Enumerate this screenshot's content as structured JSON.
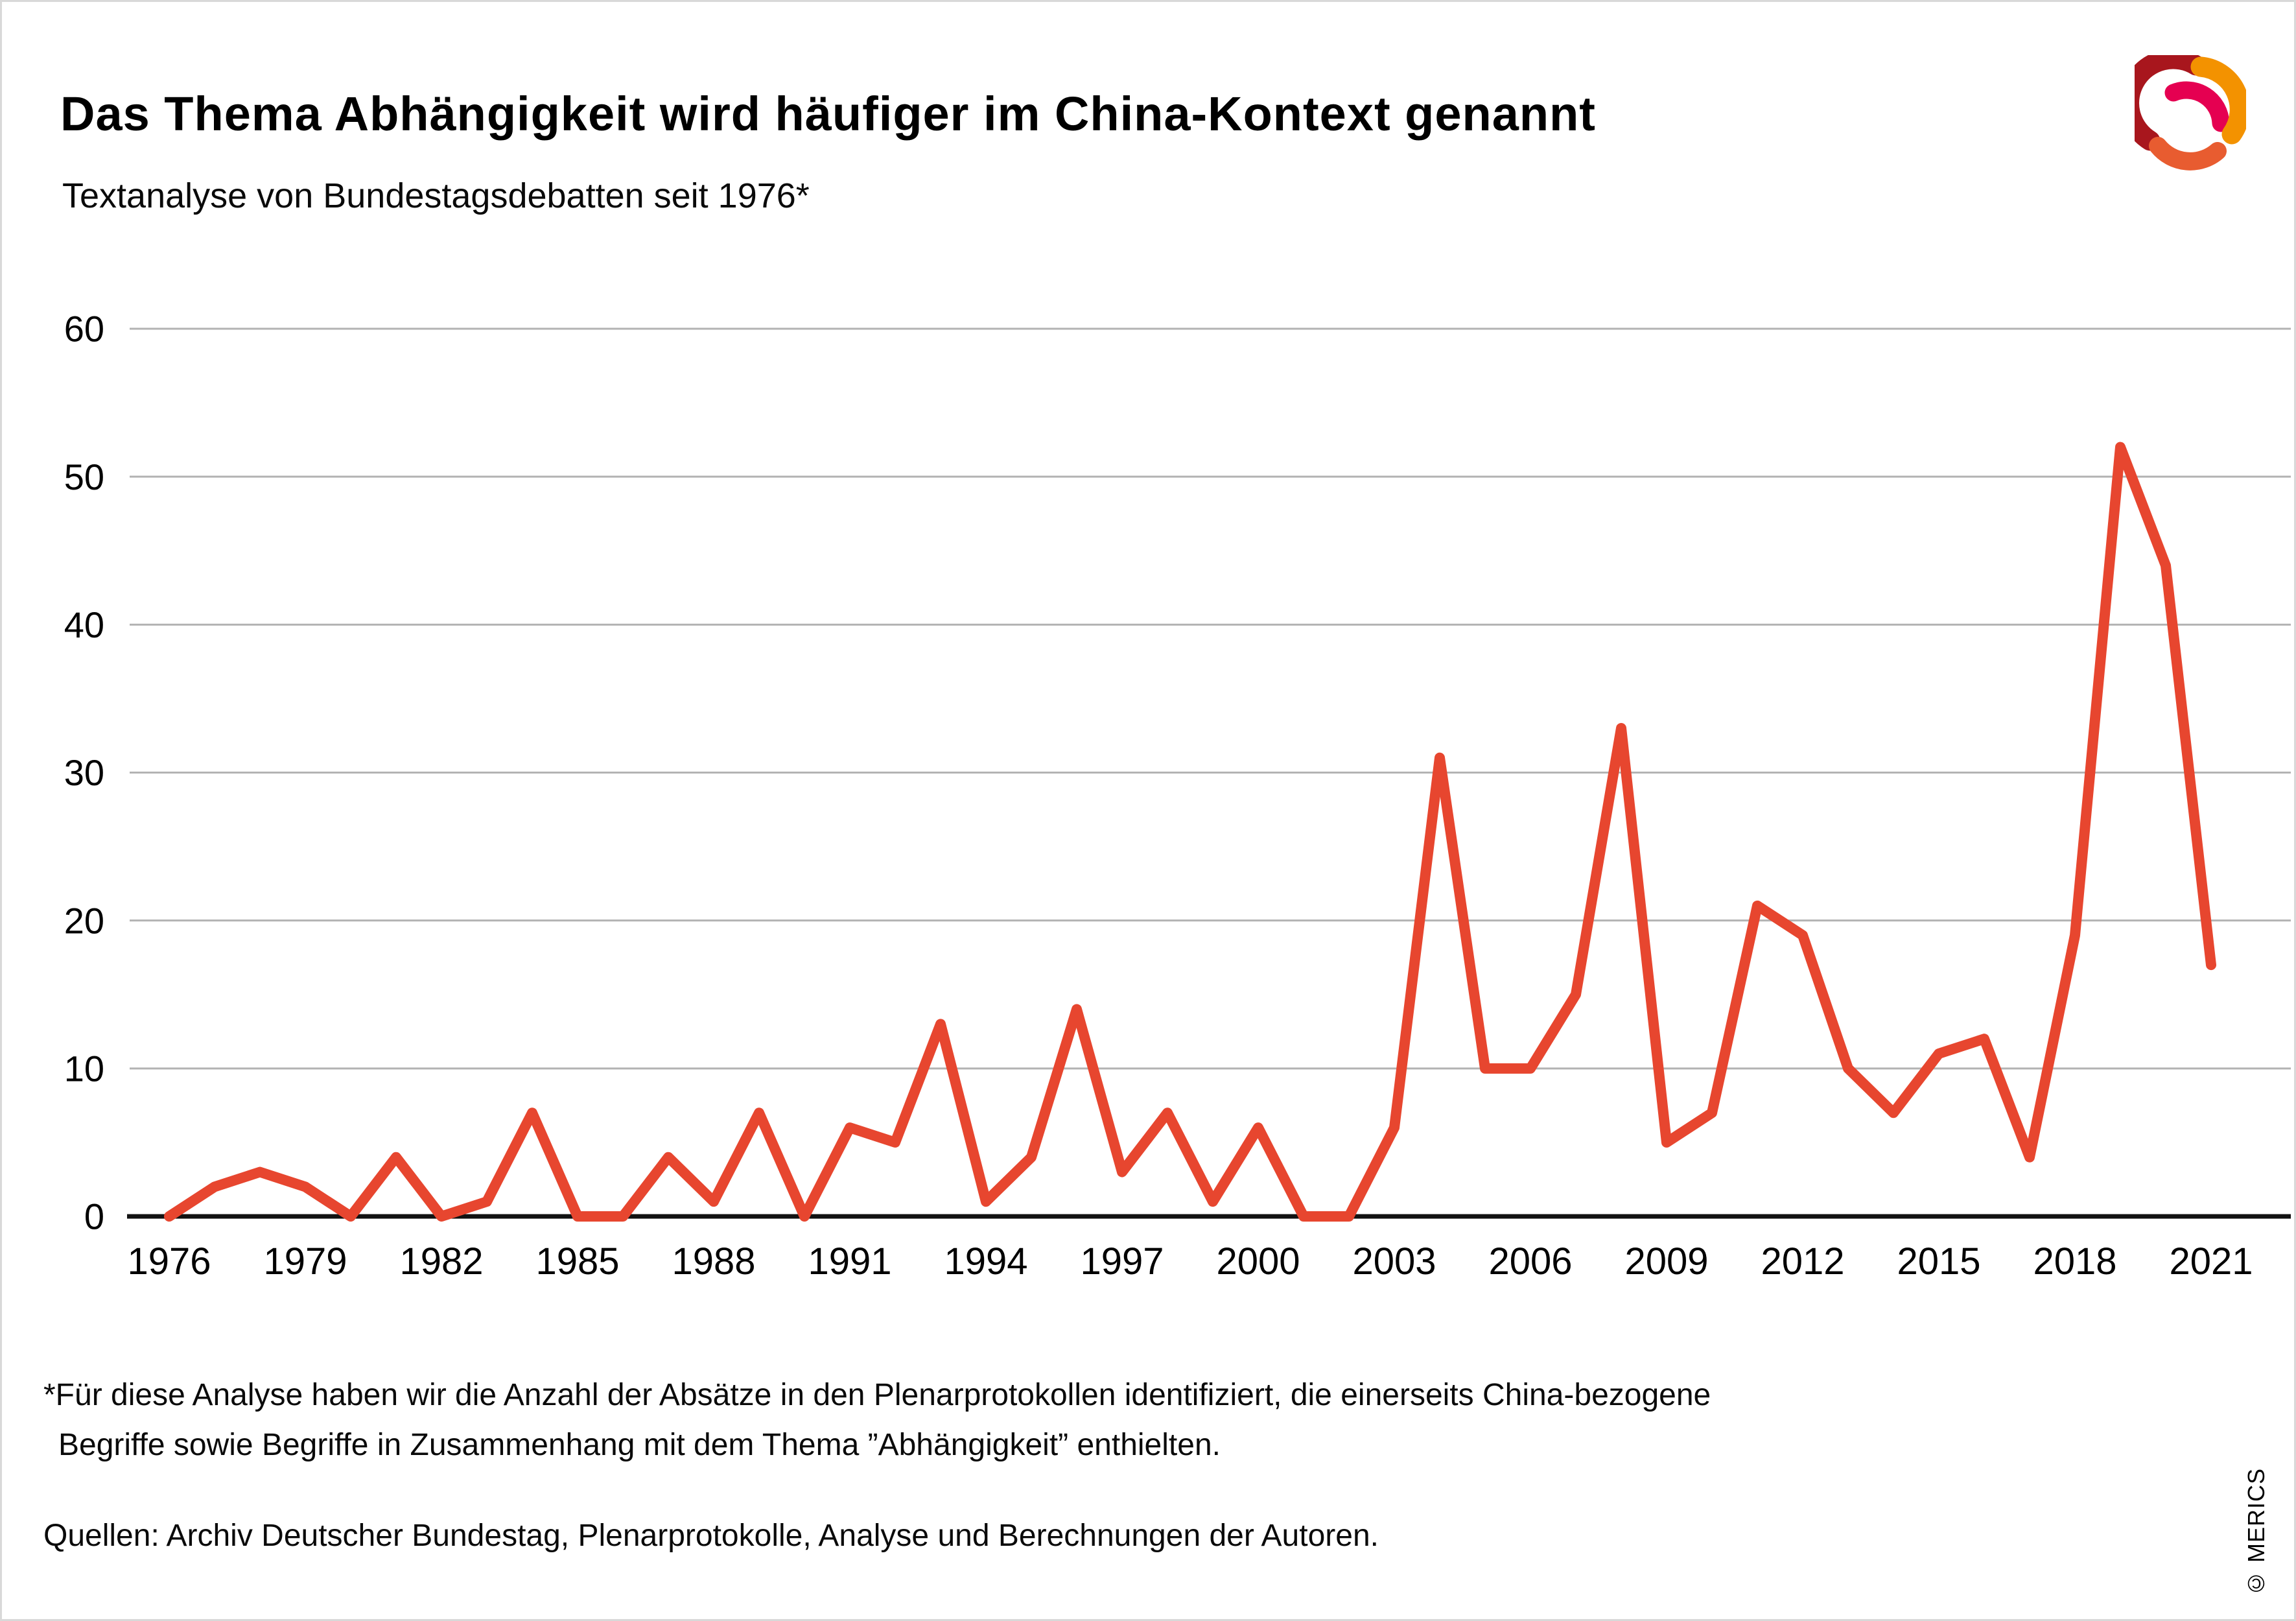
{
  "header": {
    "title": "Das Thema Abhängigkeit wird häufiger im China-Kontext genannt",
    "subtitle": "Textanalyse von Bundestagsdebatten seit 1976*"
  },
  "branding": {
    "logo_icon": "merics-swirl-logo",
    "copyright": "© MERICS",
    "logo_colors": {
      "dark_red": "#a8161d",
      "pink": "#e50051",
      "orange": "#f39200",
      "orange_red": "#e85c30"
    }
  },
  "footnotes": {
    "line1": "*Für diese Analyse haben wir die Anzahl der Absätze in den Plenarprotokollen identifiziert, die einerseits China-bezogene",
    "line2": "Begriffe sowie Begriffe in Zusammenhang mit dem Thema ”Abhängigkeit” enthielten.",
    "sources": "Quellen: Archiv Deutscher Bundestag, Plenarprotokolle, Analyse und Berechnungen der Autoren."
  },
  "chart_data": {
    "type": "line",
    "title": "Das Thema Abhängigkeit wird häufiger im China-Kontext genannt",
    "subtitle": "Textanalyse von Bundestagsdebatten seit 1976*",
    "x": [
      1976,
      1977,
      1978,
      1979,
      1980,
      1981,
      1982,
      1983,
      1984,
      1985,
      1986,
      1987,
      1988,
      1989,
      1990,
      1991,
      1992,
      1993,
      1994,
      1995,
      1996,
      1997,
      1998,
      1999,
      2000,
      2001,
      2002,
      2003,
      2004,
      2005,
      2006,
      2007,
      2008,
      2009,
      2010,
      2011,
      2012,
      2013,
      2014,
      2015,
      2016,
      2017,
      2018,
      2019,
      2020,
      2021
    ],
    "values": [
      0,
      2,
      3,
      2,
      0,
      4,
      0,
      1,
      7,
      0,
      0,
      4,
      1,
      7,
      0,
      6,
      5,
      13,
      1,
      4,
      14,
      3,
      7,
      1,
      6,
      0,
      0,
      6,
      31,
      10,
      10,
      15,
      33,
      5,
      7,
      21,
      19,
      10,
      7,
      11,
      12,
      4,
      19,
      52,
      44,
      17
    ],
    "x_tick_labels": [
      "1976",
      "1979",
      "1982",
      "1985",
      "1988",
      "1991",
      "1994",
      "1997",
      "2000",
      "2003",
      "2006",
      "2009",
      "2012",
      "2015",
      "2018",
      "2021"
    ],
    "y_ticks": [
      0,
      10,
      20,
      30,
      40,
      50,
      60
    ],
    "ylim": [
      0,
      60
    ],
    "xlabel": "",
    "ylabel": "",
    "grid": "horizontal",
    "legend": "none",
    "line_color": "#e7462f",
    "gridline_color": "#b3b3b3",
    "axis_color": "#121212"
  }
}
